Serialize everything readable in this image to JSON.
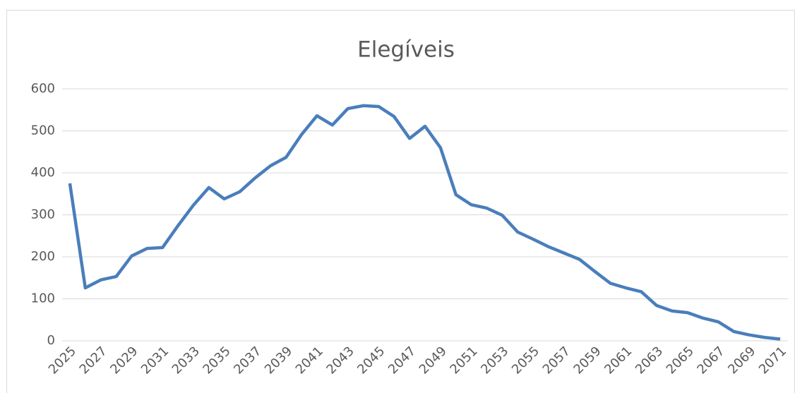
{
  "chart_data": {
    "type": "line",
    "title": "Elegíveis",
    "categories": [
      "2025",
      null,
      "2027",
      null,
      "2029",
      null,
      "2031",
      null,
      "2033",
      null,
      "2035",
      null,
      "2037",
      null,
      "2039",
      null,
      "2041",
      null,
      "2043",
      null,
      "2045",
      null,
      "2047",
      null,
      "2049",
      null,
      "2051",
      null,
      "2053",
      null,
      "2055",
      null,
      "2057",
      null,
      "2059",
      null,
      "2061",
      null,
      "2063",
      null,
      "2065",
      null,
      "2067",
      null,
      "2069",
      null,
      "2071"
    ],
    "series": [
      {
        "name": "Elegíveis",
        "color": "#4a7ebb",
        "values": [
          375,
          126,
          145,
          153,
          202,
          220,
          222,
          274,
          323,
          365,
          338,
          355,
          388,
          417,
          437,
          491,
          536,
          514,
          553,
          560,
          558,
          534,
          482,
          511,
          460,
          348,
          324,
          316,
          299,
          259,
          242,
          224,
          209,
          194,
          165,
          137,
          126,
          117,
          84,
          71,
          67,
          54,
          45,
          22,
          14,
          8,
          4
        ]
      }
    ],
    "ylim": [
      0,
      600
    ],
    "yticks": [
      0,
      100,
      200,
      300,
      400,
      500,
      600
    ],
    "grid": true
  }
}
